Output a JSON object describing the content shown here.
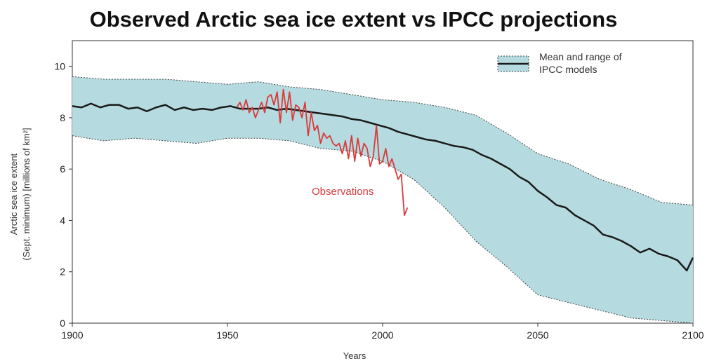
{
  "chart_data": {
    "type": "line",
    "title": "Observed Arctic sea ice extent vs IPCC projections",
    "xlabel": "Years",
    "ylabel_line1": "Arctic sea ice extent",
    "ylabel_line2": "(Sept. minimum) [millions of km²]",
    "xlim": [
      1900,
      2100
    ],
    "ylim": [
      0,
      11
    ],
    "x_ticks": [
      1900,
      1950,
      2000,
      2050,
      2100
    ],
    "y_ticks": [
      0,
      2,
      4,
      6,
      8,
      10
    ],
    "legend": {
      "position": "top-right",
      "label_line1": "Mean and range of",
      "label_line2": "IPCC models"
    },
    "annotation": "Observations",
    "colors": {
      "band": "#b5dbe0",
      "mean": "#1a1a1a",
      "observations": "#d93a3a"
    },
    "model_range": {
      "x": [
        1900,
        1910,
        1920,
        1930,
        1940,
        1950,
        1960,
        1970,
        1980,
        1990,
        2000,
        2010,
        2020,
        2030,
        2040,
        2050,
        2060,
        2070,
        2080,
        2090,
        2100
      ],
      "upper": [
        9.6,
        9.5,
        9.5,
        9.5,
        9.4,
        9.3,
        9.4,
        9.2,
        9.1,
        8.9,
        8.7,
        8.6,
        8.4,
        8.1,
        7.4,
        6.6,
        6.2,
        5.6,
        5.2,
        4.7,
        4.6
      ],
      "lower": [
        7.3,
        7.1,
        7.2,
        7.1,
        7.0,
        7.2,
        7.2,
        7.1,
        6.8,
        6.7,
        6.3,
        5.6,
        4.5,
        3.2,
        2.2,
        1.1,
        0.8,
        0.5,
        0.2,
        0.1,
        0.0
      ]
    },
    "series": [
      {
        "name": "Mean and range of IPCC models",
        "x": [
          1900,
          1903,
          1906,
          1909,
          1912,
          1915,
          1918,
          1921,
          1924,
          1927,
          1930,
          1933,
          1936,
          1939,
          1942,
          1945,
          1948,
          1951,
          1954,
          1957,
          1960,
          1963,
          1966,
          1969,
          1972,
          1975,
          1978,
          1981,
          1984,
          1987,
          1990,
          1993,
          1996,
          1999,
          2002,
          2005,
          2008,
          2011,
          2014,
          2017,
          2020,
          2023,
          2026,
          2029,
          2032,
          2035,
          2038,
          2041,
          2044,
          2047,
          2050,
          2053,
          2056,
          2059,
          2062,
          2065,
          2068,
          2071,
          2074,
          2077,
          2080,
          2083,
          2086,
          2089,
          2092,
          2095,
          2098,
          2100
        ],
        "values": [
          8.45,
          8.4,
          8.55,
          8.4,
          8.5,
          8.5,
          8.35,
          8.4,
          8.25,
          8.4,
          8.5,
          8.3,
          8.4,
          8.3,
          8.35,
          8.3,
          8.4,
          8.45,
          8.35,
          8.35,
          8.35,
          8.4,
          8.3,
          8.35,
          8.3,
          8.25,
          8.2,
          8.15,
          8.1,
          8.05,
          7.95,
          7.9,
          7.8,
          7.7,
          7.6,
          7.45,
          7.35,
          7.25,
          7.15,
          7.1,
          7.0,
          6.9,
          6.85,
          6.75,
          6.55,
          6.4,
          6.2,
          6.0,
          5.7,
          5.5,
          5.15,
          4.9,
          4.6,
          4.5,
          4.2,
          4.0,
          3.8,
          3.45,
          3.35,
          3.2,
          3.0,
          2.75,
          2.9,
          2.7,
          2.6,
          2.45,
          2.05,
          2.55
        ]
      },
      {
        "name": "Observations",
        "x": [
          1953,
          1954,
          1955,
          1956,
          1957,
          1958,
          1959,
          1960,
          1961,
          1962,
          1963,
          1964,
          1965,
          1966,
          1967,
          1968,
          1969,
          1970,
          1971,
          1972,
          1973,
          1974,
          1975,
          1976,
          1977,
          1978,
          1979,
          1980,
          1981,
          1982,
          1983,
          1984,
          1985,
          1986,
          1987,
          1988,
          1989,
          1990,
          1991,
          1992,
          1993,
          1994,
          1995,
          1996,
          1997,
          1998,
          1999,
          2000,
          2001,
          2002,
          2003,
          2004,
          2005,
          2006,
          2007,
          2008
        ],
        "values": [
          8.4,
          8.6,
          8.3,
          8.7,
          8.2,
          8.4,
          8.0,
          8.3,
          8.6,
          8.2,
          8.8,
          8.9,
          8.5,
          9.0,
          7.8,
          9.1,
          8.2,
          9.0,
          7.9,
          8.5,
          8.4,
          8.0,
          8.6,
          7.3,
          8.2,
          7.5,
          7.7,
          7.0,
          7.4,
          7.2,
          7.3,
          7.0,
          6.9,
          7.0,
          6.6,
          7.1,
          6.4,
          7.3,
          6.3,
          7.2,
          6.5,
          7.0,
          6.8,
          6.1,
          6.5,
          7.7,
          6.2,
          6.3,
          6.8,
          6.1,
          6.4,
          6.0,
          5.6,
          5.8,
          4.2,
          4.5
        ]
      }
    ]
  }
}
